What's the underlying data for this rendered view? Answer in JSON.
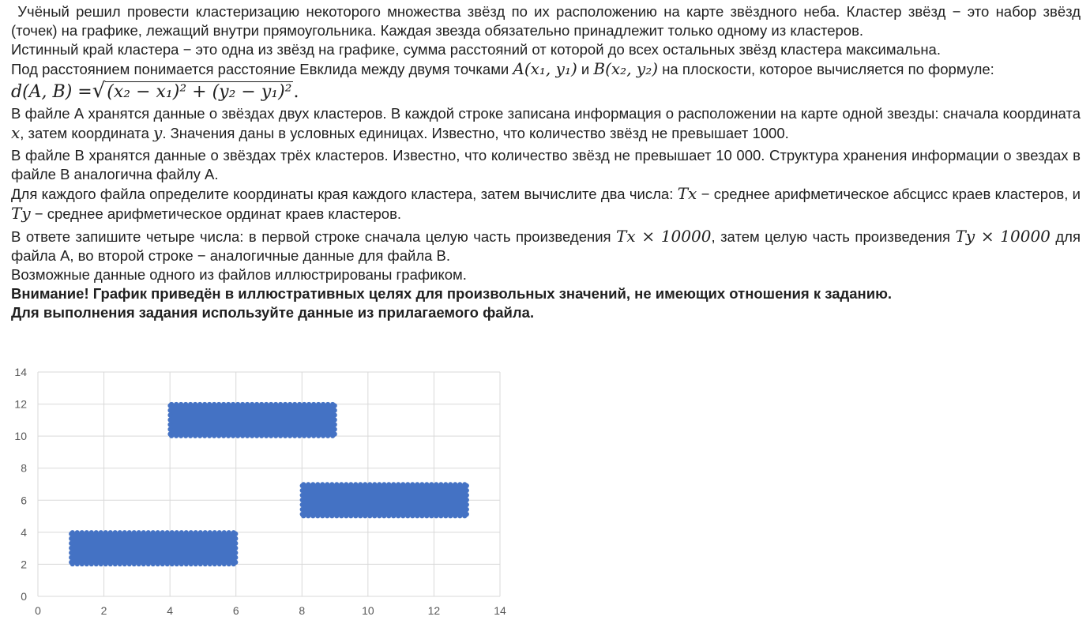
{
  "text": {
    "p1": "Учёный решил провести кластеризацию некоторого множества звёзд по их расположению на карте звёздного неба. Кластер звёзд − это набор звёзд (точек) на графике, лежащий внутри прямоугольника. Каждая звезда обязательно принадлежит только одному из кластеров.",
    "p2": "Истинный край кластера − это одна из звёзд на графике, сумма расстояний от которой до всех остальных звёзд кластера максимальна.",
    "p3_a": "Под расстоянием понимается расстояние Евклида между двумя точками",
    "p3_A": "A(x₁, y₁)",
    "p3_and": "и",
    "p3_B": "B(x₂, y₂)",
    "p3_b": "на плоскости, которое вычисляется по формуле:",
    "formula": {
      "lhs": "d(A, B) =",
      "radicand": "(x₂ − x₁)² + (y₂ − y₁)²",
      "tail": "."
    },
    "p4_a": "В файле А хранятся данные о звёздах двух кластеров. В каждой строке записана информация о расположении на карте одной звезды: сначала координата",
    "p4_x": "x",
    "p4_b": ", затем координата",
    "p4_y": "y",
    "p4_c": ". Значения даны в условных единицах. Известно, что количество звёзд не превышает 1000.",
    "p5": "В файле B хранятся данные о звёздах трёх кластеров. Известно, что количество звёзд не превышает 10 000. Структура хранения информации о звездах в файле B аналогична файлу А.",
    "p6_a": "Для каждого файла определите координаты края каждого кластера, затем вычислите два числа:",
    "p6_Tx": "Tx",
    "p6_b": "− среднее арифметическое абсцисс краев кластеров, и",
    "p6_Ty": "Ty",
    "p6_c": "− среднее арифметическое ординат краев кластеров.",
    "p7_a": "В ответе запишите четыре числа: в первой строке сначала целую часть произведения",
    "p7_m1": "Tx × 10000",
    "p7_b": ", затем целую часть произведения",
    "p7_m2": "Ty × 10000",
    "p7_c": "для файла А, во второй строке − аналогичные данные для файла B.",
    "p8": "Возможные данные одного из файлов иллюстрированы графиком.",
    "warn1": "Внимание! График приведён в иллюстративных целях для произвольных значений, не имеющих отношения к заданию.",
    "warn2": "Для выполнения задания используйте данные из прилагаемого файла."
  },
  "chart_data": {
    "type": "scatter",
    "xlim": [
      0,
      14
    ],
    "ylim": [
      0,
      14
    ],
    "xticks": [
      "0",
      "2",
      "4",
      "6",
      "8",
      "10",
      "12",
      "14"
    ],
    "yticks": [
      "0",
      "2",
      "4",
      "6",
      "8",
      "10",
      "12",
      "14"
    ],
    "grid": true,
    "clusters": [
      {
        "x_range": [
          1,
          6
        ],
        "y_range": [
          2,
          4
        ]
      },
      {
        "x_range": [
          4,
          9
        ],
        "y_range": [
          10,
          12
        ]
      },
      {
        "x_range": [
          8,
          13
        ],
        "y_range": [
          5,
          7
        ]
      }
    ],
    "color": "#4472C4"
  }
}
